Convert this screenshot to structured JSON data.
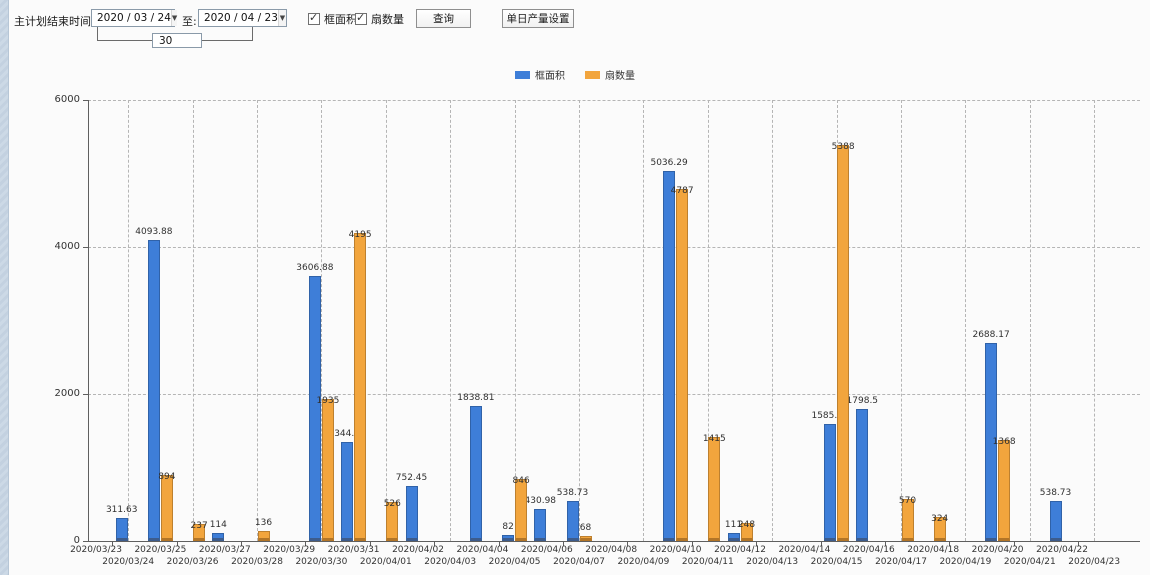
{
  "toolbar": {
    "label": "主计划结束时间:",
    "date_from": "2020 / 03 / 24",
    "to_label": "至:",
    "date_to": "2020 / 04 / 23",
    "interval_days": "30",
    "checkboxes": [
      {
        "label": "框面积",
        "checked": true
      },
      {
        "label": "扇数量",
        "checked": true
      }
    ],
    "query_button": "查询",
    "daily_output_button": "单日产量设置"
  },
  "legend": {
    "items": [
      {
        "label": "框面积",
        "color": "#3e7ed8"
      },
      {
        "label": "扇数量",
        "color": "#f2a53d"
      }
    ]
  },
  "chart_data": {
    "type": "bar",
    "title": "",
    "xlabel": "",
    "ylabel": "",
    "ylim": [
      0,
      6000
    ],
    "yticks": [
      0,
      2000,
      4000,
      6000
    ],
    "grid": "dashed",
    "legend_position": "top",
    "categories": [
      "2020/03/23",
      "2020/03/24",
      "2020/03/25",
      "2020/03/26",
      "2020/03/27",
      "2020/03/28",
      "2020/03/29",
      "2020/03/30",
      "2020/03/31",
      "2020/04/01",
      "2020/04/02",
      "2020/04/03",
      "2020/04/04",
      "2020/04/05",
      "2020/04/06",
      "2020/04/07",
      "2020/04/08",
      "2020/04/09",
      "2020/04/10",
      "2020/04/11",
      "2020/04/12",
      "2020/04/13",
      "2020/04/14",
      "2020/04/15",
      "2020/04/16",
      "2020/04/17",
      "2020/04/18",
      "2020/04/19",
      "2020/04/20",
      "2020/04/21",
      "2020/04/22",
      "2020/04/23"
    ],
    "series": [
      {
        "name": "框面积",
        "color": "#3e7ed8",
        "values": [
          null,
          311.63,
          4093.88,
          null,
          114,
          null,
          null,
          3606.88,
          1344.95,
          null,
          752.45,
          null,
          1838.81,
          82,
          430.98,
          538.73,
          null,
          null,
          5036.29,
          null,
          111,
          null,
          null,
          1585.96,
          1798.5,
          null,
          null,
          null,
          2688.17,
          null,
          538.73,
          null
        ]
      },
      {
        "name": "扇数量",
        "color": "#f2a53d",
        "values": [
          null,
          null,
          894,
          237,
          null,
          136,
          null,
          1935,
          4195,
          526,
          null,
          null,
          null,
          846,
          null,
          68,
          null,
          null,
          4787,
          1415,
          248,
          null,
          null,
          5388,
          null,
          570,
          324,
          null,
          1368,
          null,
          null,
          null
        ]
      }
    ]
  }
}
